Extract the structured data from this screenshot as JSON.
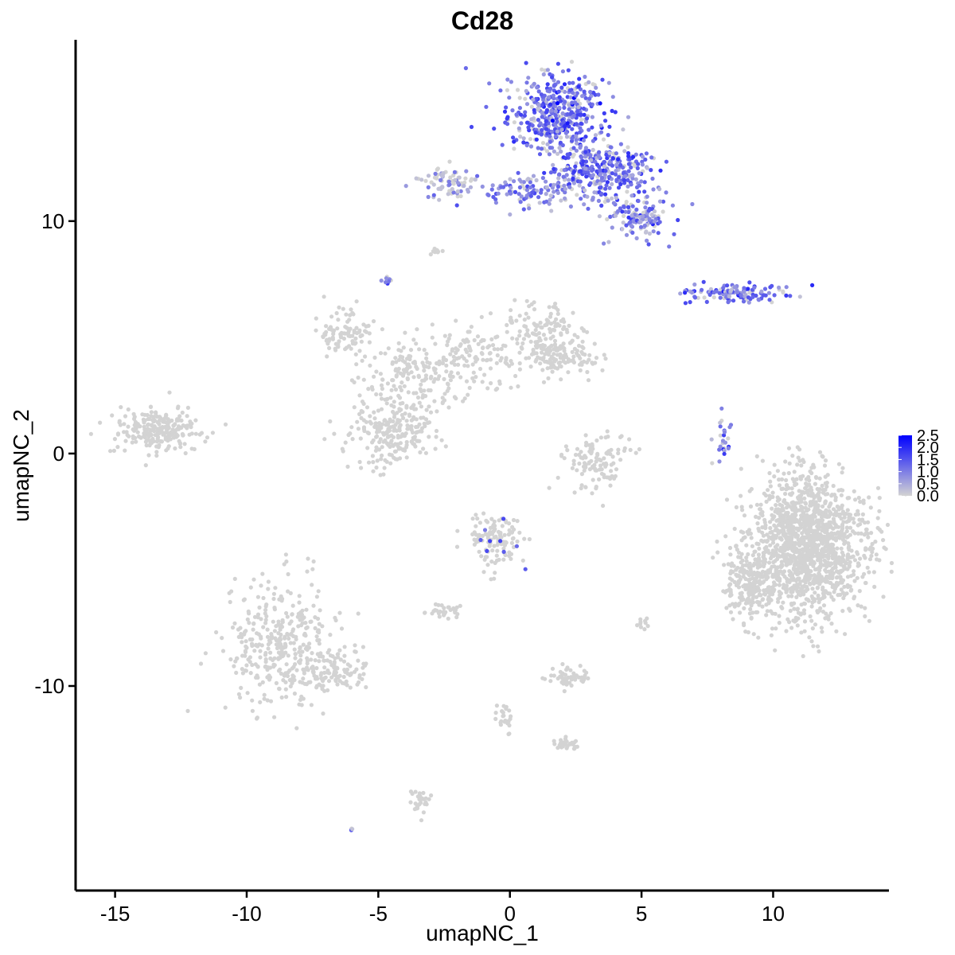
{
  "chart_data": {
    "type": "scatter",
    "title": "Cd28",
    "xlabel": "umapNC_1",
    "ylabel": "umapNC_2",
    "xlim": [
      -16.5,
      14.4
    ],
    "ylim": [
      -18.8,
      17.8
    ],
    "x_ticks": [
      -15,
      -10,
      -5,
      0,
      5,
      10
    ],
    "x_tick_labels": [
      "-15",
      "-10",
      "-5",
      "0",
      "5",
      "10"
    ],
    "y_ticks": [
      -10,
      0,
      10
    ],
    "y_tick_labels": [
      "-10",
      "0",
      "10"
    ],
    "grid": false,
    "color_low": "#d3d3d3",
    "color_high": "#0000ff",
    "legend": {
      "position": "right",
      "title": "",
      "min": 0.0,
      "max": 2.5,
      "labels": [
        "0.0",
        "0.5",
        "1.0",
        "1.5",
        "2.0",
        "2.5"
      ],
      "values": [
        0.0,
        0.5,
        1.0,
        1.5,
        2.0,
        2.5
      ]
    },
    "clusters": [
      {
        "center": [
          1.8,
          14.6
        ],
        "spread": [
          0.9,
          0.9
        ],
        "n": 450,
        "expr": 1.2
      },
      {
        "center": [
          3.5,
          12.2
        ],
        "spread": [
          1.0,
          0.6
        ],
        "n": 300,
        "expr": 1.2
      },
      {
        "center": [
          4.8,
          10.2
        ],
        "spread": [
          0.6,
          0.45
        ],
        "n": 130,
        "expr": 1.0
      },
      {
        "center": [
          0.8,
          11.3
        ],
        "spread": [
          1.3,
          0.35
        ],
        "n": 110,
        "expr": 0.9
      },
      {
        "center": [
          -2.3,
          11.6
        ],
        "spread": [
          0.55,
          0.35
        ],
        "n": 70,
        "expr": 0.5
      },
      {
        "center": [
          8.7,
          6.9
        ],
        "spread": [
          1.0,
          0.2
        ],
        "n": 130,
        "expr": 1.1
      },
      {
        "center": [
          8.1,
          0.5
        ],
        "spread": [
          0.15,
          0.6
        ],
        "n": 25,
        "expr": 1.0
      },
      {
        "center": [
          -13.4,
          1.0
        ],
        "spread": [
          0.8,
          0.5
        ],
        "n": 230,
        "expr": 0.0
      },
      {
        "center": [
          -6.3,
          5.2
        ],
        "spread": [
          0.5,
          0.5
        ],
        "n": 90,
        "expr": 0.0
      },
      {
        "center": [
          -4.2,
          3.4
        ],
        "spread": [
          0.9,
          0.8
        ],
        "n": 110,
        "expr": 0.0
      },
      {
        "center": [
          -1.3,
          4.2
        ],
        "spread": [
          1.0,
          0.8
        ],
        "n": 120,
        "expr": 0.0
      },
      {
        "center": [
          1.3,
          5.2
        ],
        "spread": [
          0.7,
          0.7
        ],
        "n": 130,
        "expr": 0.0
      },
      {
        "center": [
          2.0,
          4.1
        ],
        "spread": [
          0.7,
          0.4
        ],
        "n": 110,
        "expr": 0.0
      },
      {
        "center": [
          -4.4,
          0.9
        ],
        "spread": [
          0.8,
          0.7
        ],
        "n": 230,
        "expr": 0.0
      },
      {
        "center": [
          -2.8,
          3.2
        ],
        "spread": [
          0.6,
          0.6
        ],
        "n": 50,
        "expr": 0.0
      },
      {
        "center": [
          3.3,
          -0.4
        ],
        "spread": [
          0.7,
          0.6
        ],
        "n": 110,
        "expr": 0.0
      },
      {
        "center": [
          11.3,
          -3.9
        ],
        "spread": [
          1.1,
          1.5
        ],
        "n": 1500,
        "expr": 0.0
      },
      {
        "center": [
          9.1,
          -5.6
        ],
        "spread": [
          0.5,
          0.8
        ],
        "n": 200,
        "expr": 0.0
      },
      {
        "center": [
          -0.5,
          -3.7
        ],
        "spread": [
          0.55,
          0.6
        ],
        "n": 130,
        "expr": 0.05
      },
      {
        "center": [
          -8.7,
          -8.2
        ],
        "spread": [
          1.0,
          1.3
        ],
        "n": 320,
        "expr": 0.0
      },
      {
        "center": [
          -7.0,
          -9.4
        ],
        "spread": [
          1.0,
          0.5
        ],
        "n": 140,
        "expr": 0.0
      },
      {
        "center": [
          -2.4,
          -6.8
        ],
        "spread": [
          0.3,
          0.15
        ],
        "n": 30,
        "expr": 0.0
      },
      {
        "center": [
          2.2,
          -9.6
        ],
        "spread": [
          0.4,
          0.25
        ],
        "n": 50,
        "expr": 0.0
      },
      {
        "center": [
          2.2,
          -12.5
        ],
        "spread": [
          0.3,
          0.15
        ],
        "n": 30,
        "expr": 0.0
      },
      {
        "center": [
          -0.2,
          -11.5
        ],
        "spread": [
          0.15,
          0.35
        ],
        "n": 25,
        "expr": 0.0
      },
      {
        "center": [
          -3.4,
          -14.9
        ],
        "spread": [
          0.2,
          0.3
        ],
        "n": 30,
        "expr": 0.0
      },
      {
        "center": [
          -2.8,
          8.7
        ],
        "spread": [
          0.15,
          0.08
        ],
        "n": 12,
        "expr": 0.0
      },
      {
        "center": [
          -4.7,
          7.5
        ],
        "spread": [
          0.1,
          0.1
        ],
        "n": 8,
        "expr": 0.8
      },
      {
        "center": [
          5.0,
          -7.3
        ],
        "spread": [
          0.12,
          0.15
        ],
        "n": 10,
        "expr": 0.0
      },
      {
        "center": [
          -6.0,
          -16.2
        ],
        "spread": [
          0.05,
          0.05
        ],
        "n": 3,
        "expr": 1.0
      }
    ]
  }
}
